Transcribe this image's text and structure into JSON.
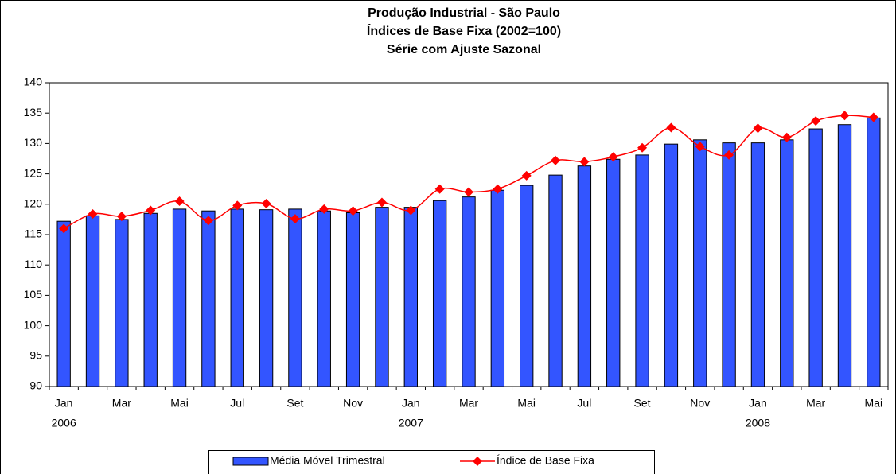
{
  "chart_data": {
    "type": "bar_line",
    "title": [
      "Produção Industrial - São Paulo",
      "Índices de Base Fixa (2002=100)",
      "Série com Ajuste Sazonal"
    ],
    "categories": [
      "Jan",
      null,
      "Mar",
      null,
      "Mai",
      null,
      "Jul",
      null,
      "Set",
      null,
      "Nov",
      null,
      "Jan",
      null,
      "Mar",
      null,
      "Mai",
      null,
      "Jul",
      null,
      "Set",
      null,
      "Nov",
      null,
      "Jan",
      null,
      "Mar",
      null,
      "Mai"
    ],
    "years": [
      "2006",
      null,
      null,
      null,
      null,
      null,
      null,
      null,
      null,
      null,
      null,
      null,
      "2007",
      null,
      null,
      null,
      null,
      null,
      null,
      null,
      null,
      null,
      null,
      null,
      "2008",
      null,
      null,
      null,
      null
    ],
    "series": [
      {
        "name": "Média Móvel Trimestral",
        "type": "bar",
        "color": "#3355ff",
        "values": [
          117.2,
          118.1,
          117.5,
          118.5,
          119.2,
          118.9,
          119.2,
          119.1,
          119.2,
          118.9,
          118.6,
          119.5,
          119.5,
          120.6,
          121.2,
          122.3,
          123.1,
          124.8,
          126.3,
          127.4,
          128.1,
          129.9,
          130.6,
          130.1,
          130.1,
          130.6,
          132.4,
          133.1,
          134.2
        ]
      },
      {
        "name": "Índice de Base Fixa",
        "type": "line",
        "color": "#ff0000",
        "values": [
          116.0,
          118.4,
          118.0,
          119.0,
          120.5,
          117.3,
          119.8,
          120.1,
          117.6,
          119.2,
          118.9,
          120.3,
          119.0,
          122.5,
          122.0,
          122.5,
          124.7,
          127.2,
          127.0,
          127.8,
          129.3,
          132.6,
          129.5,
          128.1,
          132.5,
          131.0,
          133.7,
          134.6,
          134.3
        ]
      }
    ],
    "ylim": [
      90,
      140
    ],
    "yticks": [
      90,
      95,
      100,
      105,
      110,
      115,
      120,
      125,
      130,
      135,
      140
    ],
    "legend": "bottom"
  }
}
